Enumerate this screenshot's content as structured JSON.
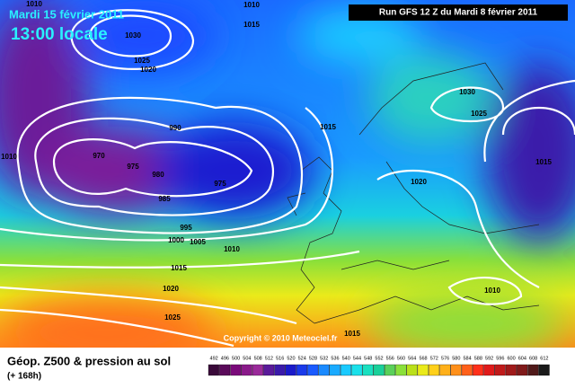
{
  "header": {
    "date": "Mardi 15 février 2011",
    "time": "13:00 locale",
    "run": "Run GFS 12 Z du Mardi 8 février 2011"
  },
  "isobar_labels": [
    "1010",
    "1010",
    "1015",
    "1030",
    "1025",
    "1020",
    "990",
    "1015",
    "1010",
    "970",
    "975",
    "980",
    "975",
    "985",
    "1030",
    "1025",
    "1015",
    "1020",
    "995",
    "1000",
    "1005",
    "1010",
    "1015",
    "1020",
    "1010",
    "1025",
    "1015"
  ],
  "copyright": "Copyright © 2010 Meteociel.fr",
  "footer": {
    "title": "Géop. Z500 & pression au sol",
    "lead": "(+ 168h)"
  },
  "scale": {
    "values": [
      492,
      496,
      500,
      504,
      508,
      512,
      516,
      520,
      524,
      528,
      532,
      536,
      540,
      544,
      548,
      552,
      556,
      560,
      564,
      568,
      572,
      576,
      580,
      584,
      588,
      592,
      596,
      600,
      604,
      608,
      612
    ],
    "colors": [
      "#3a0a3a",
      "#5a0a5a",
      "#7a0a7a",
      "#8a1a8a",
      "#9a2a9a",
      "#5a1a9a",
      "#3a1aaa",
      "#1a1aca",
      "#1a3aea",
      "#1a5aff",
      "#1a8aff",
      "#1aaaff",
      "#1acaff",
      "#1ae0ea",
      "#1ae0c0",
      "#1ad09a",
      "#5ad05a",
      "#8ae03a",
      "#bae01a",
      "#eaea1a",
      "#ffd01a",
      "#ffb01a",
      "#ff901a",
      "#ff601a",
      "#ff301a",
      "#e01a1a",
      "#c01a1a",
      "#a01a1a",
      "#801a1a",
      "#501a1a",
      "#1a1a1a"
    ]
  }
}
